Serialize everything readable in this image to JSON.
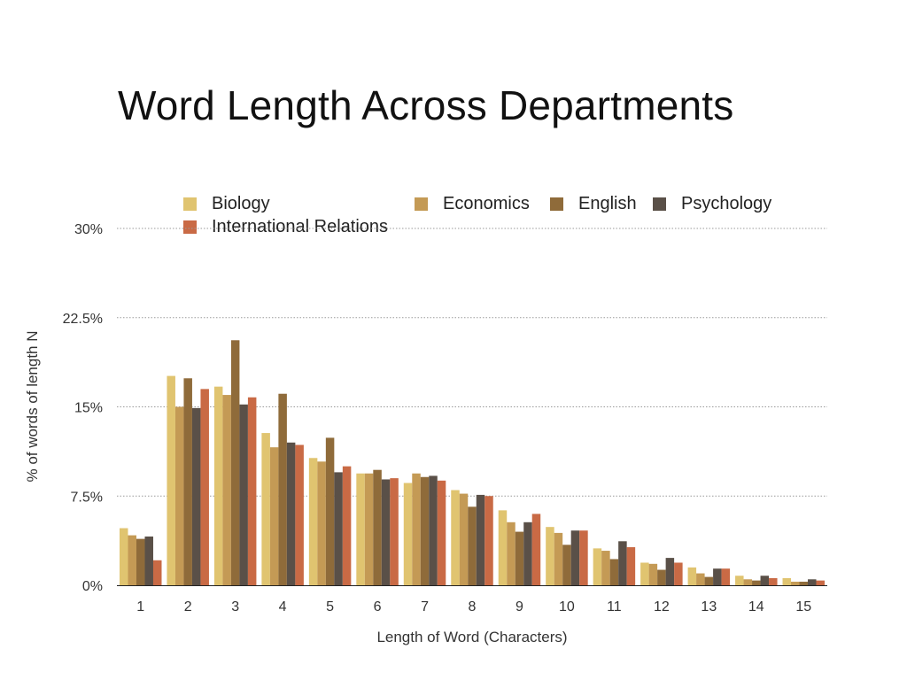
{
  "chart_data": {
    "type": "bar",
    "title": "Word Length Across Departments",
    "xlabel": "Length of Word (Characters)",
    "ylabel": "% of words of length N",
    "ylim": [
      0,
      30
    ],
    "yticks": [
      "0%",
      "7.5%",
      "15%",
      "22.5%",
      "30%"
    ],
    "ytick_values": [
      0,
      7.5,
      15,
      22.5,
      30
    ],
    "grid": "horizontal dotted",
    "legend_position": "top",
    "categories": [
      "1",
      "2",
      "3",
      "4",
      "5",
      "6",
      "7",
      "8",
      "9",
      "10",
      "11",
      "12",
      "13",
      "14",
      "15"
    ],
    "series": [
      {
        "name": "Biology",
        "color": "#E0C470",
        "values": [
          4.8,
          17.6,
          16.7,
          12.8,
          10.7,
          9.4,
          8.6,
          8.0,
          6.3,
          4.9,
          3.1,
          1.9,
          1.5,
          0.8,
          0.6
        ]
      },
      {
        "name": "Economics",
        "color": "#C49A55",
        "values": [
          4.2,
          15.0,
          16.0,
          11.6,
          10.4,
          9.4,
          9.4,
          7.7,
          5.3,
          4.4,
          2.9,
          1.8,
          1.0,
          0.5,
          0.3
        ]
      },
      {
        "name": "English",
        "color": "#8F6B3A",
        "values": [
          3.9,
          17.4,
          20.6,
          16.1,
          12.4,
          9.7,
          9.1,
          6.6,
          4.5,
          3.4,
          2.2,
          1.3,
          0.7,
          0.4,
          0.3
        ]
      },
      {
        "name": "Psychology",
        "color": "#5A5048",
        "values": [
          4.1,
          14.9,
          15.2,
          12.0,
          9.5,
          8.9,
          9.2,
          7.6,
          5.3,
          4.6,
          3.7,
          2.3,
          1.4,
          0.8,
          0.5
        ]
      },
      {
        "name": "International Relations",
        "color": "#C96A45",
        "values": [
          2.1,
          16.5,
          15.8,
          11.8,
          10.0,
          9.0,
          8.8,
          7.5,
          6.0,
          4.6,
          3.2,
          1.9,
          1.4,
          0.6,
          0.4
        ]
      }
    ]
  }
}
